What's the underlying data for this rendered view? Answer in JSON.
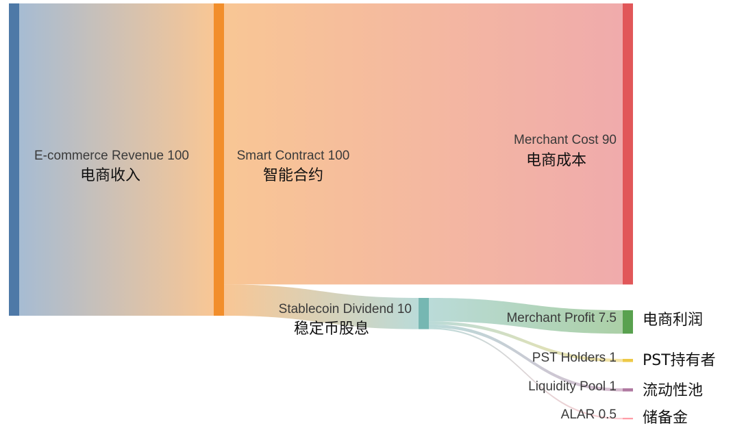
{
  "chart_data": {
    "type": "sankey",
    "nodes": [
      {
        "id": "revenue",
        "name": "E-commerce Revenue",
        "value": 100,
        "name_cn": "电商收入",
        "color": "#4e79a7"
      },
      {
        "id": "contract",
        "name": "Smart Contract",
        "value": 100,
        "name_cn": "智能合约",
        "color": "#f28e2b"
      },
      {
        "id": "cost",
        "name": "Merchant Cost",
        "value": 90,
        "name_cn": "电商成本",
        "color": "#e15759"
      },
      {
        "id": "dividend",
        "name": "Stablecoin Dividend",
        "value": 10,
        "name_cn": "稳定币股息",
        "color": "#76b7b2"
      },
      {
        "id": "profit",
        "name": "Merchant Profit",
        "value": 7.5,
        "name_cn": "电商利润",
        "color": "#59a14f"
      },
      {
        "id": "pst",
        "name": "PST Holders",
        "value": 1,
        "name_cn": "PST持有者",
        "color": "#edc948"
      },
      {
        "id": "pool",
        "name": "Liquidity Pool",
        "value": 1,
        "name_cn": "流动性池",
        "color": "#b07aa1"
      },
      {
        "id": "alar",
        "name": "ALAR",
        "value": 0.5,
        "name_cn": "储备金",
        "color": "#ff9da7"
      }
    ],
    "links": [
      {
        "source": "revenue",
        "target": "contract",
        "value": 100
      },
      {
        "source": "contract",
        "target": "cost",
        "value": 90
      },
      {
        "source": "contract",
        "target": "dividend",
        "value": 10
      },
      {
        "source": "dividend",
        "target": "profit",
        "value": 7.5
      },
      {
        "source": "dividend",
        "target": "pst",
        "value": 1
      },
      {
        "source": "dividend",
        "target": "pool",
        "value": 1
      },
      {
        "source": "dividend",
        "target": "alar",
        "value": 0.5
      }
    ]
  }
}
